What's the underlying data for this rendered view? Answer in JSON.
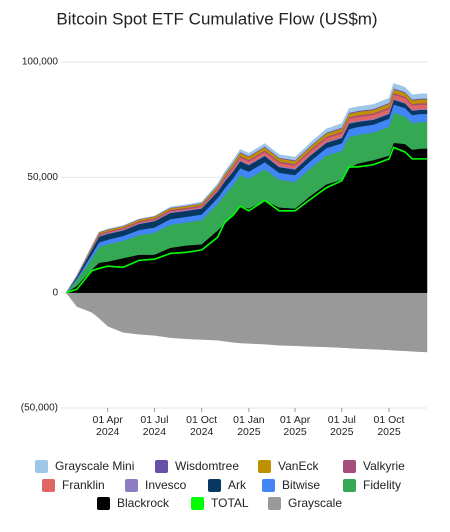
{
  "chart_data": {
    "type": "area",
    "stacked": true,
    "title": "Bitcoin Spot ETF Cumulative Flow (US$m)",
    "x": [
      "2024-01-11",
      "2024-02-01",
      "2024-03-01",
      "2024-03-15",
      "2024-04-01",
      "2024-05-01",
      "2024-06-01",
      "2024-07-01",
      "2024-08-01",
      "2024-09-01",
      "2024-10-01",
      "2024-11-01",
      "2024-11-15",
      "2024-12-01",
      "2024-12-15",
      "2025-01-01",
      "2025-02-01",
      "2025-03-01",
      "2025-04-01",
      "2025-05-01",
      "2025-06-01",
      "2025-07-01",
      "2025-07-15",
      "2025-08-01",
      "2025-09-01",
      "2025-10-01",
      "2025-10-10",
      "2025-11-01",
      "2025-11-15",
      "2025-12-01",
      "2025-12-14"
    ],
    "xlim": [
      "2024-01-01",
      "2025-12-14"
    ],
    "xticks": [
      {
        "value": "2024-04-01",
        "label": [
          "01 Apr",
          "2024"
        ]
      },
      {
        "value": "2024-07-01",
        "label": [
          "01 Jul",
          "2024"
        ]
      },
      {
        "value": "2024-10-01",
        "label": [
          "01 Oct",
          "2024"
        ]
      },
      {
        "value": "2025-01-01",
        "label": [
          "01 Jan",
          "2025"
        ]
      },
      {
        "value": "2025-04-01",
        "label": [
          "01 Apr",
          "2025"
        ]
      },
      {
        "value": "2025-07-01",
        "label": [
          "01 Jul",
          "2025"
        ]
      },
      {
        "value": "2025-10-01",
        "label": [
          "01 Oct",
          "2025"
        ]
      }
    ],
    "ylim": [
      -50000,
      100000
    ],
    "yticks": [
      {
        "value": 100000,
        "label": "100,000"
      },
      {
        "value": 50000,
        "label": "50,000"
      },
      0,
      {
        "value": -50000,
        "label": "(50,000)"
      }
    ],
    "grid": true,
    "legend": "bottom",
    "series": [
      {
        "name": "Grayscale Mini",
        "color": "#9fc5e8",
        "values": [
          0,
          0,
          0,
          0,
          0,
          0,
          0,
          0,
          300,
          400,
          500,
          700,
          900,
          1100,
          1200,
          1200,
          1300,
          1300,
          1300,
          1400,
          1600,
          1700,
          1800,
          1800,
          1900,
          2000,
          2100,
          2100,
          2000,
          2000,
          2000
        ]
      },
      {
        "name": "Wisdomtree",
        "color": "#674ea7",
        "values": [
          0,
          20,
          150,
          200,
          200,
          200,
          200,
          200,
          200,
          200,
          200,
          250,
          300,
          350,
          350,
          350,
          350,
          350,
          350,
          350,
          400,
          400,
          400,
          400,
          400,
          400,
          400,
          400,
          400,
          400,
          400
        ]
      },
      {
        "name": "VanEck",
        "color": "#bf9000",
        "values": [
          0,
          150,
          550,
          650,
          650,
          650,
          700,
          750,
          750,
          750,
          800,
          900,
          1000,
          1200,
          1300,
          1300,
          1300,
          1300,
          1300,
          1300,
          1400,
          1400,
          1500,
          1500,
          1500,
          1500,
          1600,
          1600,
          1600,
          1600,
          1600
        ]
      },
      {
        "name": "Valkyrie",
        "color": "#a64d79",
        "values": [
          0,
          200,
          400,
          500,
          500,
          500,
          500,
          500,
          550,
          550,
          550,
          600,
          650,
          700,
          700,
          700,
          700,
          700,
          700,
          700,
          700,
          700,
          700,
          700,
          700,
          700,
          700,
          700,
          700,
          700,
          700
        ]
      },
      {
        "name": "Franklin",
        "color": "#e06666",
        "values": [
          0,
          100,
          250,
          300,
          350,
          350,
          400,
          400,
          450,
          450,
          500,
          600,
          900,
          1100,
          1200,
          1200,
          1300,
          1300,
          1300,
          1400,
          1500,
          1600,
          1700,
          1700,
          1700,
          1800,
          1800,
          1800,
          1800,
          1800,
          1800
        ]
      },
      {
        "name": "Invesco",
        "color": "#8e7cc3",
        "values": [
          0,
          100,
          250,
          300,
          300,
          300,
          300,
          300,
          300,
          300,
          300,
          350,
          400,
          400,
          400,
          400,
          400,
          400,
          400,
          400,
          400,
          400,
          400,
          400,
          400,
          400,
          400,
          400,
          400,
          400,
          400
        ]
      },
      {
        "name": "Ark",
        "color": "#073763",
        "values": [
          0,
          800,
          2000,
          2500,
          2500,
          2400,
          2600,
          2700,
          2700,
          2600,
          2600,
          2800,
          3000,
          3000,
          3000,
          2800,
          2700,
          2500,
          2400,
          2400,
          2300,
          2300,
          2400,
          2200,
          2100,
          2000,
          2100,
          2000,
          1900,
          1800,
          1800
        ]
      },
      {
        "name": "Bitwise",
        "color": "#4285f4",
        "values": [
          0,
          700,
          1600,
          2000,
          2000,
          2100,
          2200,
          2300,
          2400,
          2400,
          2400,
          2500,
          2800,
          3000,
          3000,
          3000,
          3100,
          3000,
          3000,
          3100,
          3200,
          3300,
          3400,
          3400,
          3400,
          3500,
          3600,
          3600,
          3500,
          3500,
          3500
        ]
      },
      {
        "name": "Fidelity",
        "color": "#34a853",
        "values": [
          0,
          2500,
          5000,
          6800,
          7500,
          7500,
          8500,
          9500,
          10000,
          10000,
          10500,
          11500,
          12500,
          13000,
          13500,
          13000,
          13500,
          12000,
          11500,
          12000,
          12500,
          12500,
          13500,
          12500,
          12000,
          12500,
          13000,
          12000,
          11500,
          11500,
          11500
        ]
      },
      {
        "name": "Blackrock",
        "color": "#000000",
        "values": [
          0,
          3000,
          10000,
          13000,
          13500,
          15000,
          16500,
          16500,
          19500,
          20500,
          21000,
          27000,
          30000,
          33500,
          37500,
          36500,
          40000,
          37000,
          36500,
          42000,
          47000,
          49000,
          54000,
          56000,
          57500,
          59500,
          65000,
          64500,
          62000,
          62500,
          62500
        ]
      },
      {
        "name": "TOTAL",
        "color": "#00ff00",
        "type": "line",
        "values": [
          0,
          1500,
          9500,
          10500,
          11500,
          11000,
          14000,
          14500,
          17000,
          17500,
          18500,
          24000,
          30500,
          33500,
          37500,
          35500,
          40000,
          35500,
          35500,
          40500,
          45500,
          48500,
          54500,
          54500,
          55500,
          58000,
          63000,
          61000,
          58000,
          58000,
          58000
        ]
      },
      {
        "name": "Grayscale",
        "color": "#999999",
        "values": [
          0,
          -6000,
          -8500,
          -11000,
          -14500,
          -17200,
          -18000,
          -18500,
          -19500,
          -20000,
          -20300,
          -20600,
          -21000,
          -21500,
          -21800,
          -22000,
          -22300,
          -22800,
          -23000,
          -23300,
          -23500,
          -23800,
          -24000,
          -24200,
          -24500,
          -24800,
          -25000,
          -25200,
          -25400,
          -25600,
          -25700
        ]
      }
    ]
  }
}
